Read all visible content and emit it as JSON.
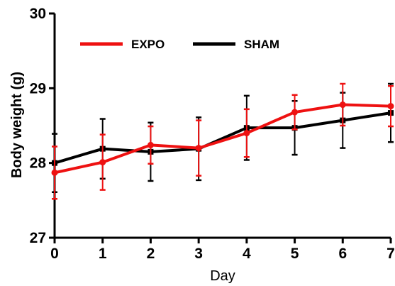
{
  "chart_data": {
    "type": "line",
    "title": "",
    "xlabel": "Day",
    "ylabel": "Body weight (g)",
    "x": [
      0,
      1,
      2,
      3,
      4,
      5,
      6,
      7
    ],
    "xlim": [
      0,
      7
    ],
    "ylim": [
      27,
      30
    ],
    "xticks": [
      "0",
      "1",
      "2",
      "3",
      "4",
      "5",
      "6",
      "7"
    ],
    "yticks": [
      "27",
      "28",
      "29",
      "30"
    ],
    "grid": false,
    "legend_position": "top-left",
    "series": [
      {
        "name": "EXPO",
        "color": "#ee1111",
        "values": [
          27.87,
          28.01,
          28.24,
          28.2,
          28.4,
          28.68,
          28.78,
          28.76
        ],
        "error": [
          0.35,
          0.37,
          0.25,
          0.37,
          0.32,
          0.23,
          0.28,
          0.27
        ]
      },
      {
        "name": "SHAM",
        "color": "#000000",
        "values": [
          28.0,
          28.19,
          28.15,
          28.19,
          28.47,
          28.47,
          28.57,
          28.67
        ],
        "error": [
          0.39,
          0.4,
          0.39,
          0.42,
          0.43,
          0.36,
          0.37,
          0.39
        ]
      }
    ]
  }
}
